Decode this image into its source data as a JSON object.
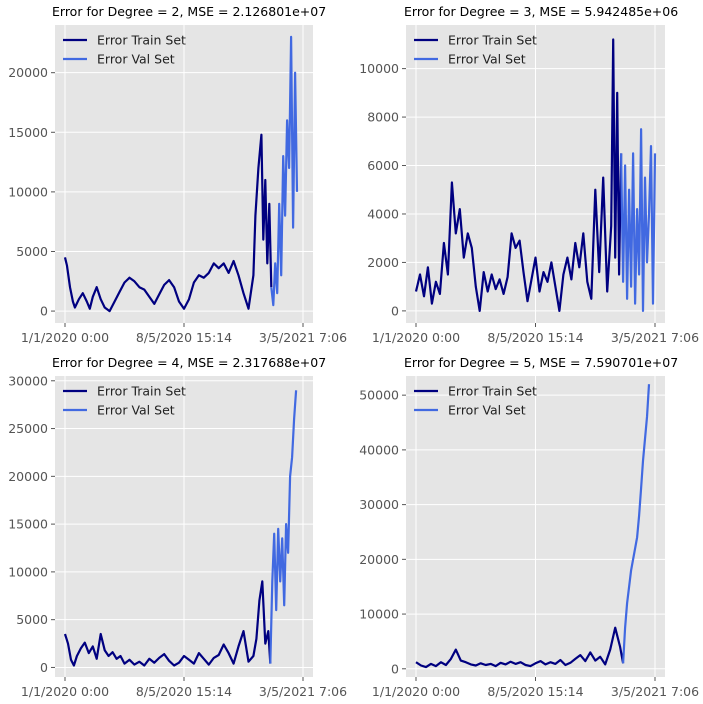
{
  "colors": {
    "train": "#000080",
    "val": "#4169E1",
    "panel_bg": "#E5E5E5",
    "grid": "#FFFFFF",
    "tick_text": "#555555",
    "title_text": "#000000"
  },
  "chart_data": [
    {
      "type": "line",
      "title": "Error for Degree = 2, MSE = 2.126801e+07",
      "xlabel": "",
      "ylabel": "",
      "x_ticks": [
        "1/1/2020 0:00",
        "8/5/2020 15:14",
        "3/5/2021 7:06"
      ],
      "y_ticks": [
        0,
        5000,
        10000,
        15000,
        20000
      ],
      "ylim": [
        -1000,
        24000
      ],
      "grid": true,
      "legend_position": "top-left",
      "series": [
        {
          "name": "Error Train Set",
          "color": "#000080",
          "x_index": [
            0,
            2,
            5,
            8,
            10,
            14,
            18,
            22,
            25,
            28,
            32,
            36,
            40,
            45,
            50,
            55,
            60,
            65,
            70,
            75,
            80,
            85,
            90,
            95,
            100,
            105,
            110,
            115,
            120,
            125,
            130,
            135,
            140,
            145,
            150,
            155,
            160,
            165,
            170,
            175,
            180,
            185,
            190,
            192,
            195,
            198,
            200,
            202,
            204,
            206,
            208
          ],
          "values": [
            4500,
            3800,
            2000,
            800,
            300,
            1000,
            1500,
            800,
            200,
            1200,
            2000,
            1000,
            300,
            0,
            800,
            1600,
            2400,
            2800,
            2500,
            2000,
            1800,
            1200,
            600,
            1400,
            2200,
            2600,
            2000,
            800,
            200,
            1000,
            2400,
            3000,
            2800,
            3200,
            4000,
            3600,
            4000,
            3200,
            4200,
            3000,
            1500,
            200,
            3000,
            8000,
            12000,
            14800,
            6000,
            11000,
            4000,
            9000,
            2000
          ]
        },
        {
          "name": "Error Val Set",
          "color": "#4169E1",
          "x_index": [
            208,
            210,
            212,
            214,
            216,
            218,
            220,
            222,
            224,
            226,
            228,
            230,
            232,
            234
          ],
          "values": [
            2000,
            500,
            4000,
            1500,
            9000,
            3000,
            13000,
            8000,
            16000,
            12000,
            23000,
            7000,
            20000,
            10000
          ]
        }
      ]
    },
    {
      "type": "line",
      "title": "Error for Degree = 3, MSE = 5.942485e+06",
      "xlabel": "",
      "ylabel": "",
      "x_ticks": [
        "1/1/2020 0:00",
        "8/5/2020 15:14",
        "3/5/2021 7:06"
      ],
      "y_ticks": [
        0,
        2000,
        4000,
        6000,
        8000,
        10000
      ],
      "ylim": [
        -500,
        11800
      ],
      "grid": true,
      "legend_position": "top-left",
      "series": [
        {
          "name": "Error Train Set",
          "color": "#000080",
          "x_index": [
            0,
            4,
            8,
            12,
            16,
            20,
            24,
            28,
            32,
            36,
            40,
            44,
            48,
            52,
            56,
            60,
            64,
            68,
            72,
            76,
            80,
            84,
            88,
            92,
            96,
            100,
            104,
            108,
            112,
            116,
            120,
            124,
            128,
            132,
            136,
            140,
            144,
            148,
            152,
            156,
            160,
            164,
            168,
            172,
            176,
            180,
            184,
            188,
            192,
            196,
            198,
            200,
            202,
            204,
            206
          ],
          "values": [
            800,
            1500,
            600,
            1800,
            300,
            1200,
            700,
            2800,
            1500,
            5300,
            3200,
            4200,
            2200,
            3200,
            2600,
            1000,
            0,
            1600,
            800,
            1500,
            900,
            1300,
            700,
            1400,
            3200,
            2600,
            2900,
            1600,
            400,
            1300,
            2200,
            800,
            1600,
            1200,
            2000,
            1000,
            0,
            1500,
            2200,
            1300,
            2800,
            1800,
            3200,
            1200,
            500,
            5000,
            1600,
            5500,
            800,
            3500,
            11200,
            2200,
            9000,
            1500,
            6500
          ]
        },
        {
          "name": "Error Val Set",
          "color": "#4169E1",
          "x_index": [
            206,
            208,
            210,
            212,
            214,
            216,
            218,
            220,
            222,
            224,
            226,
            228,
            230,
            232,
            234,
            236,
            238,
            240
          ],
          "values": [
            6500,
            1200,
            6000,
            500,
            5000,
            1000,
            6500,
            300,
            4200,
            1500,
            7500,
            0,
            5500,
            2000,
            4000,
            6800,
            300,
            6500
          ]
        }
      ]
    },
    {
      "type": "line",
      "title": "Error for Degree = 4, MSE = 2.317688e+07",
      "xlabel": "",
      "ylabel": "",
      "x_ticks": [
        "1/1/2020 0:00",
        "8/5/2020 15:14",
        "3/5/2021 7:06"
      ],
      "y_ticks": [
        0,
        5000,
        10000,
        15000,
        20000,
        25000,
        30000
      ],
      "ylim": [
        -1000,
        30500
      ],
      "grid": true,
      "legend_position": "top-left",
      "series": [
        {
          "name": "Error Train Set",
          "color": "#000080",
          "x_index": [
            0,
            3,
            6,
            9,
            12,
            16,
            20,
            24,
            28,
            32,
            36,
            40,
            44,
            48,
            52,
            56,
            60,
            65,
            70,
            75,
            80,
            85,
            90,
            95,
            100,
            105,
            110,
            115,
            120,
            125,
            130,
            135,
            140,
            145,
            150,
            155,
            160,
            165,
            170,
            175,
            180,
            185,
            190,
            193,
            196,
            199,
            202,
            205,
            207
          ],
          "values": [
            3500,
            2500,
            800,
            200,
            1200,
            2000,
            2600,
            1500,
            2200,
            900,
            3500,
            1800,
            1200,
            1600,
            900,
            1200,
            400,
            800,
            300,
            600,
            200,
            900,
            500,
            1000,
            1400,
            700,
            200,
            500,
            1200,
            800,
            400,
            1500,
            900,
            300,
            1000,
            1300,
            2400,
            1500,
            400,
            2200,
            3800,
            600,
            1200,
            3000,
            7000,
            9000,
            2500,
            3800,
            400
          ]
        },
        {
          "name": "Error Val Set",
          "color": "#4169E1",
          "x_index": [
            207,
            209,
            211,
            213,
            215,
            217,
            219,
            221,
            223,
            225,
            227,
            229,
            231,
            233
          ],
          "values": [
            400,
            9000,
            14000,
            6000,
            14500,
            9000,
            13500,
            6500,
            15000,
            12000,
            20000,
            22000,
            26000,
            29000
          ]
        }
      ]
    },
    {
      "type": "line",
      "title": "Error for Degree = 5, MSE = 7.590701e+07",
      "xlabel": "",
      "ylabel": "",
      "x_ticks": [
        "1/1/2020 0:00",
        "8/5/2020 15:14",
        "3/5/2021 7:06"
      ],
      "y_ticks": [
        0,
        10000,
        20000,
        30000,
        40000,
        50000
      ],
      "ylim": [
        -1500,
        53500
      ],
      "grid": true,
      "legend_position": "top-left",
      "series": [
        {
          "name": "Error Train Set",
          "color": "#000080",
          "x_index": [
            0,
            5,
            10,
            15,
            20,
            25,
            30,
            35,
            40,
            45,
            50,
            55,
            60,
            65,
            70,
            75,
            80,
            85,
            90,
            95,
            100,
            105,
            110,
            115,
            120,
            125,
            130,
            135,
            140,
            145,
            150,
            155,
            160,
            165,
            170,
            175,
            180,
            185,
            190,
            195,
            200,
            205,
            208
          ],
          "values": [
            1200,
            600,
            300,
            900,
            500,
            1200,
            700,
            1800,
            3500,
            1500,
            1200,
            800,
            600,
            1000,
            700,
            900,
            500,
            1100,
            800,
            1300,
            900,
            1200,
            700,
            500,
            1000,
            1400,
            800,
            1200,
            900,
            1600,
            700,
            1100,
            1800,
            2500,
            1400,
            3000,
            1500,
            2200,
            800,
            3500,
            7500,
            4000,
            1000
          ]
        },
        {
          "name": "Error Val Set",
          "color": "#4169E1",
          "x_index": [
            208,
            210,
            212,
            214,
            216,
            218,
            220,
            222,
            224,
            226,
            228,
            230,
            232,
            234
          ],
          "values": [
            1000,
            7500,
            12000,
            15000,
            18000,
            20000,
            22000,
            24000,
            28000,
            33000,
            38000,
            42000,
            46000,
            52000
          ]
        }
      ]
    }
  ]
}
